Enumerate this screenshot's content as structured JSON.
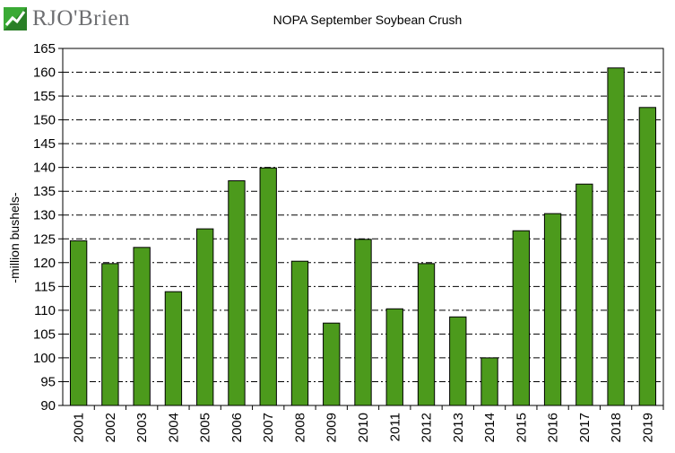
{
  "brand": {
    "logo_text": "RJO'Brien",
    "colors": {
      "green": "#3aaa35",
      "gray": "#6d6e71"
    }
  },
  "chart_data": {
    "type": "bar",
    "title": "NOPA September Soybean Crush",
    "ylabel": "-million bushels-",
    "xlabel": "",
    "ylim": [
      90,
      165
    ],
    "ytick_step": 5,
    "grid": "horizontal dash-dot",
    "bar_color": "#4c9a1c",
    "categories": [
      "2001",
      "2002",
      "2003",
      "2004",
      "2005",
      "2006",
      "2007",
      "2008",
      "2009",
      "2010",
      "2011",
      "2012",
      "2013",
      "2014",
      "2015",
      "2016",
      "2017",
      "2018",
      "2019"
    ],
    "values": [
      124.6,
      119.8,
      123.2,
      113.9,
      127.1,
      137.2,
      139.9,
      120.3,
      107.3,
      124.9,
      110.3,
      119.8,
      108.6,
      100.0,
      126.7,
      130.3,
      136.5,
      160.9,
      152.6
    ]
  }
}
